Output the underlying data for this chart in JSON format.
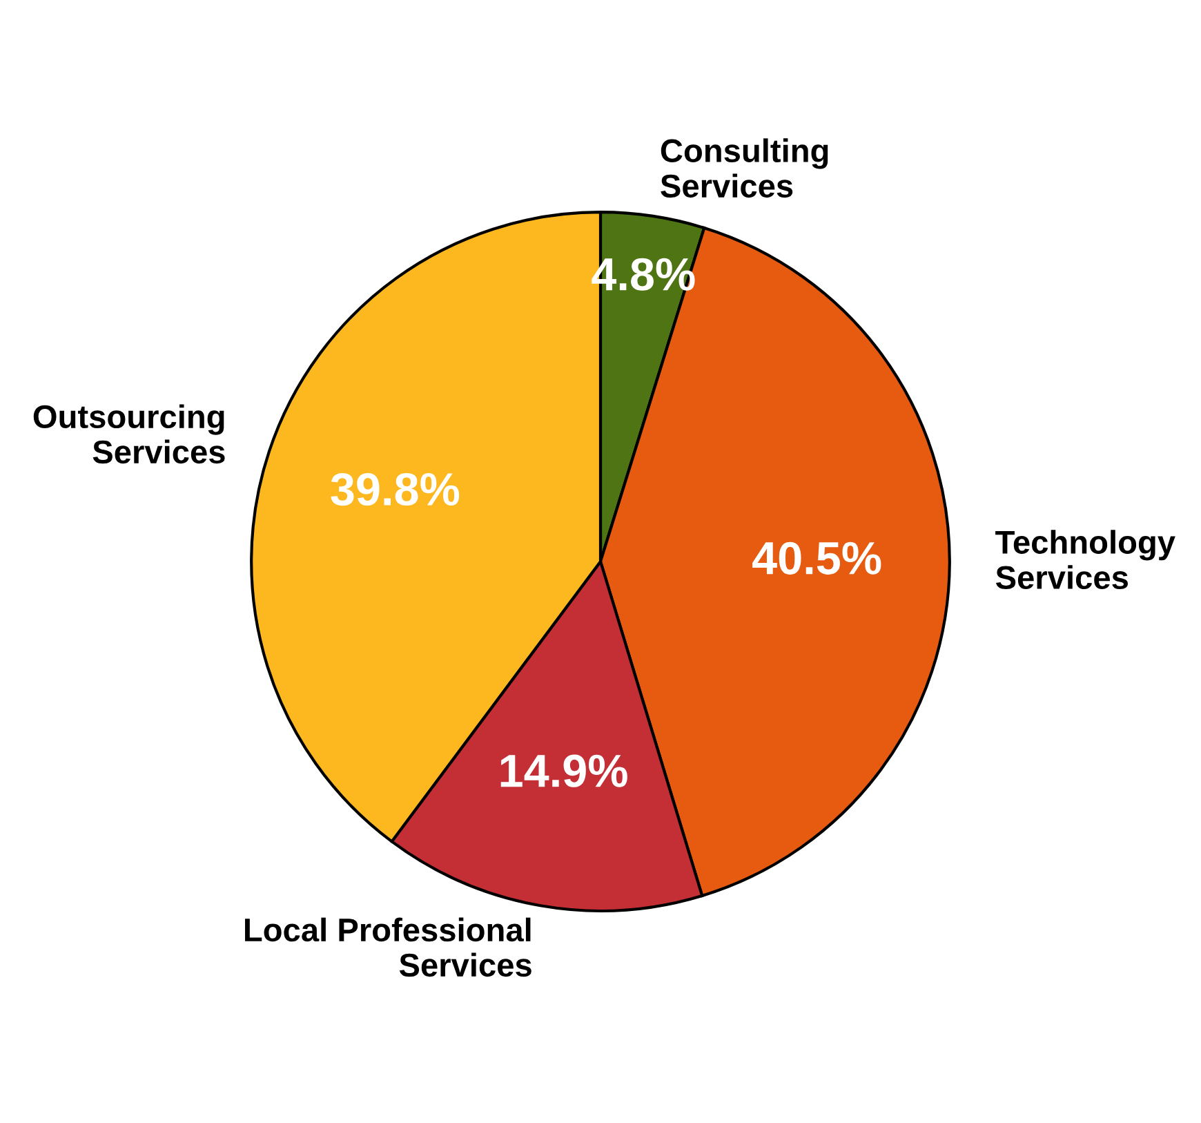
{
  "chart_data": {
    "type": "pie",
    "categories": [
      "Consulting Services",
      "Technology Services",
      "Local Professional Services",
      "Outsourcing Services"
    ],
    "values": [
      4.8,
      40.5,
      14.9,
      39.8
    ],
    "colors": [
      "#4e7413",
      "#e65b10",
      "#c42e35",
      "#fdb71f"
    ],
    "value_labels": [
      "4.8%",
      "40.5%",
      "14.9%",
      "39.8%"
    ],
    "legend": false
  }
}
